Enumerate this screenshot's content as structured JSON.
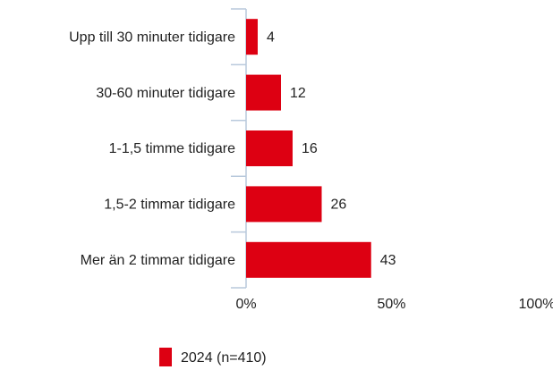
{
  "chart_data": {
    "type": "bar",
    "orientation": "horizontal",
    "categories": [
      "Upp till 30 minuter tidigare",
      "30-60 minuter tidigare",
      "1-1,5 timme tidigare",
      "1,5-2 timmar tidigare",
      "Mer än 2 timmar tidigare"
    ],
    "series": [
      {
        "name": "2024 (n=410)",
        "color": "#dd0012",
        "values": [
          4,
          12,
          16,
          26,
          43
        ]
      }
    ],
    "xlim": [
      0,
      100
    ],
    "xticks": [
      {
        "value": 0,
        "label": "0%"
      },
      {
        "value": 50,
        "label": "50%"
      },
      {
        "value": 100,
        "label": "100%"
      }
    ],
    "legend": "bottom"
  }
}
